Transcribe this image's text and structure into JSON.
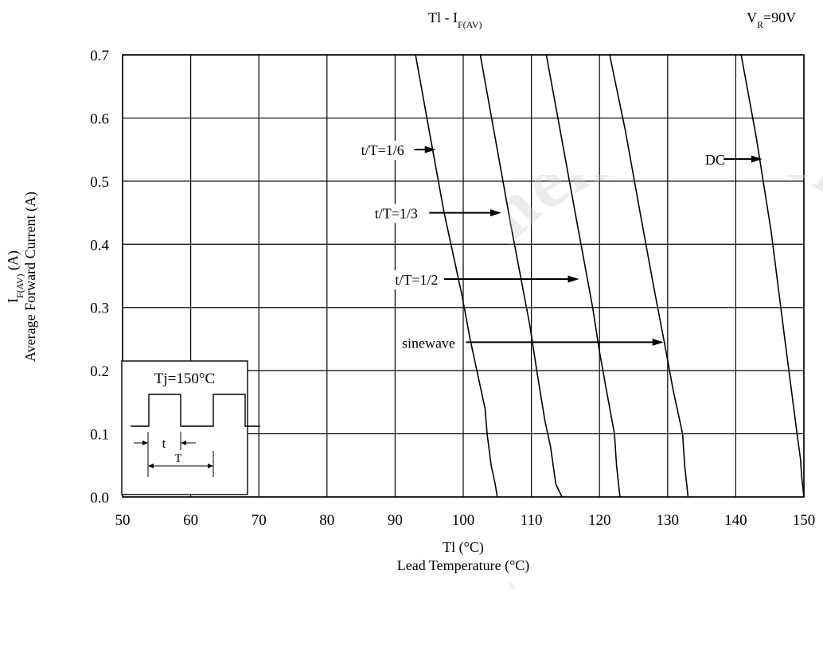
{
  "header": {
    "title_main": "Tl - I",
    "title_sub": "F(AV)",
    "condition_main": "V",
    "condition_sub": "R",
    "condition_value": "=90V"
  },
  "axes": {
    "x_label_line1": "Tl (°C)",
    "x_label_line2": "Lead Temperature (°C)",
    "y_label_sym_main": "I",
    "y_label_sym_sub": "F(AV)",
    "y_label_sym_unit": " (A)",
    "y_label_line2": "Average Forward Current (A)",
    "x_ticks": [
      "50",
      "60",
      "70",
      "80",
      "90",
      "100",
      "110",
      "120",
      "130",
      "140",
      "150"
    ],
    "y_ticks": [
      "0.0",
      "0.1",
      "0.2",
      "0.3",
      "0.4",
      "0.5",
      "0.6",
      "0.7"
    ]
  },
  "inset": {
    "title": "Tj=150°C",
    "t_label": "t",
    "T_label": "T"
  },
  "watermark_text": "Not Recommended for New Designs",
  "chart_data": {
    "type": "line",
    "title": "",
    "xlabel": "Tl (°C)",
    "ylabel": "Average Forward Current (A)",
    "xlim": [
      50,
      150
    ],
    "ylim": [
      0,
      0.7
    ],
    "grid": true,
    "series": [
      {
        "name": "t/T=1/6",
        "x": [
          105,
          104.7,
          104.1,
          103.5,
          103.2,
          101.0,
          99.8,
          97.2,
          95.0,
          93.0
        ],
        "y": [
          0,
          0.02,
          0.05,
          0.1,
          0.14,
          0.25,
          0.32,
          0.45,
          0.58,
          0.7
        ]
      },
      {
        "name": "t/T=1/3",
        "x": [
          114.5,
          113.6,
          113.2,
          112.8,
          112.0,
          110.8,
          109.8,
          107.0,
          104.5,
          102.5
        ],
        "y": [
          0,
          0.02,
          0.05,
          0.08,
          0.12,
          0.2,
          0.27,
          0.43,
          0.58,
          0.7
        ]
      },
      {
        "name": "t/T=1/2",
        "x": [
          123.0,
          122.5,
          122.2,
          121.0,
          120.0,
          119.0,
          116.6,
          114.4,
          112.2
        ],
        "y": [
          0,
          0.05,
          0.1,
          0.17,
          0.23,
          0.3,
          0.44,
          0.57,
          0.7
        ]
      },
      {
        "name": "sinewave",
        "x": [
          133.0,
          132.5,
          132.2,
          130.8,
          129.6,
          128.0,
          125.8,
          123.8,
          121.5
        ],
        "y": [
          0,
          0.05,
          0.1,
          0.17,
          0.24,
          0.33,
          0.46,
          0.58,
          0.7
        ]
      },
      {
        "name": "DC",
        "x": [
          150.0,
          149.7,
          149.5,
          149.0,
          147.2,
          145.2,
          143.0,
          140.8
        ],
        "y": [
          0,
          0.03,
          0.06,
          0.1,
          0.25,
          0.42,
          0.57,
          0.7
        ]
      }
    ],
    "annotations": [
      {
        "label": "t/T=1/6",
        "series": "t/T=1/6",
        "text_x": 85.0,
        "text_y": 0.55,
        "arrow_from": 92.8,
        "arrow_to": 96.0
      },
      {
        "label": "t/T=1/3",
        "series": "t/T=1/3",
        "text_x": 87.0,
        "text_y": 0.45,
        "arrow_from": 95.0,
        "arrow_to": 105.6
      },
      {
        "label": "t/T=1/2",
        "series": "t/T=1/2",
        "text_x": 90.0,
        "text_y": 0.345,
        "arrow_from": 97.2,
        "arrow_to": 117.0
      },
      {
        "label": "sinewave",
        "series": "sinewave",
        "text_x": 91.0,
        "text_y": 0.245,
        "arrow_from": 100.4,
        "arrow_to": 129.4
      },
      {
        "label": "DC",
        "series": "DC",
        "text_x": 135.5,
        "text_y": 0.535,
        "arrow_from": 138.2,
        "arrow_to": 143.9
      }
    ]
  }
}
